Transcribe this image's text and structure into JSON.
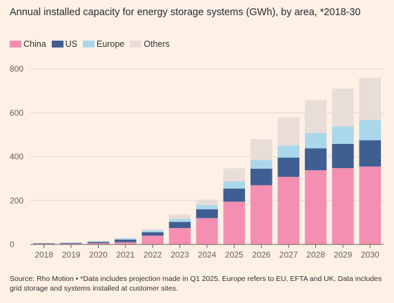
{
  "title": "Annual installed capacity for energy storage systems (GWh), by area, *2018-30",
  "source": "Source: Rho Motion • *Data includes projection made in Q1 2025. Europe refers to EU, EFTA and UK. Data includes grid storage and systems installed at customer sites.",
  "legend": [
    {
      "name": "China",
      "color": "#f48fb1"
    },
    {
      "name": "US",
      "color": "#3f5f93"
    },
    {
      "name": "Europe",
      "color": "#abd7ea"
    },
    {
      "name": "Others",
      "color": "#e9ddd8"
    }
  ],
  "chart_data": {
    "type": "bar",
    "stacked": true,
    "categories": [
      "2018",
      "2019",
      "2020",
      "2021",
      "2022",
      "2023",
      "2024",
      "2025",
      "2026",
      "2027",
      "2028",
      "2029",
      "2030"
    ],
    "series": [
      {
        "name": "China",
        "color": "#f48fb1",
        "values": [
          3,
          4,
          6,
          10,
          40,
          75,
          120,
          195,
          270,
          308,
          338,
          348,
          355
        ]
      },
      {
        "name": "US",
        "color": "#3f5f93",
        "values": [
          2,
          3,
          5,
          12,
          16,
          28,
          40,
          60,
          75,
          88,
          100,
          110,
          120
        ]
      },
      {
        "name": "Europe",
        "color": "#abd7ea",
        "values": [
          1,
          2,
          3,
          5,
          8,
          14,
          20,
          32,
          40,
          55,
          70,
          80,
          92
        ]
      },
      {
        "name": "Others",
        "color": "#e9ddd8",
        "values": [
          1,
          1,
          2,
          4,
          7,
          20,
          25,
          60,
          95,
          128,
          150,
          172,
          193
        ]
      }
    ],
    "ylim": [
      0,
      800
    ],
    "yticks": [
      0,
      200,
      400,
      600,
      800
    ],
    "grid": true,
    "legend_position": "top-left"
  }
}
